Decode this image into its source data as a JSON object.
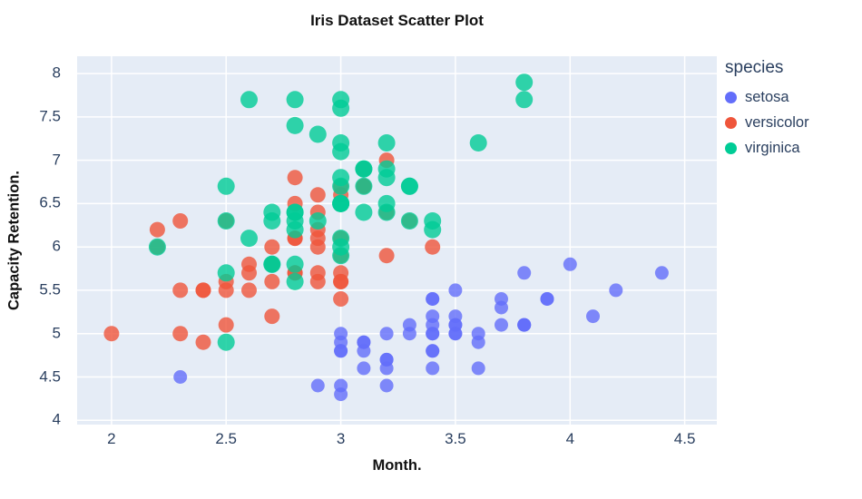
{
  "chart_data": {
    "type": "scatter",
    "title": "Iris Dataset Scatter Plot",
    "xlabel": "Month.",
    "ylabel": "Capacity Retention.",
    "xlim": [
      1.85,
      4.64
    ],
    "ylim": [
      3.95,
      8.2
    ],
    "x_ticks": [
      2,
      2.5,
      3,
      3.5,
      4,
      4.5
    ],
    "y_ticks": [
      4,
      4.5,
      5,
      5.5,
      6,
      6.5,
      7,
      7.5,
      8
    ],
    "grid": true,
    "plot_bg": "#E5ECF6",
    "grid_color": "#FFFFFF",
    "legend_position": "right",
    "legend_title": "species",
    "marker_opacity": 0.8,
    "series": [
      {
        "name": "setosa",
        "color": "#636EFA",
        "marker_radius": 7.5,
        "points": [
          [
            3.5,
            5.1
          ],
          [
            3.0,
            4.9
          ],
          [
            3.2,
            4.7
          ],
          [
            3.1,
            4.6
          ],
          [
            3.6,
            5.0
          ],
          [
            3.9,
            5.4
          ],
          [
            3.4,
            4.6
          ],
          [
            3.4,
            5.0
          ],
          [
            2.9,
            4.4
          ],
          [
            3.1,
            4.9
          ],
          [
            3.7,
            5.4
          ],
          [
            3.4,
            4.8
          ],
          [
            3.0,
            4.8
          ],
          [
            3.0,
            4.3
          ],
          [
            4.0,
            5.8
          ],
          [
            4.4,
            5.7
          ],
          [
            3.9,
            5.4
          ],
          [
            3.5,
            5.1
          ],
          [
            3.8,
            5.7
          ],
          [
            3.8,
            5.1
          ],
          [
            3.4,
            5.4
          ],
          [
            3.7,
            5.1
          ],
          [
            3.6,
            4.6
          ],
          [
            3.3,
            5.1
          ],
          [
            3.4,
            4.8
          ],
          [
            3.0,
            5.0
          ],
          [
            3.4,
            5.0
          ],
          [
            3.5,
            5.2
          ],
          [
            3.4,
            5.2
          ],
          [
            3.2,
            4.7
          ],
          [
            3.1,
            4.8
          ],
          [
            3.4,
            5.4
          ],
          [
            4.1,
            5.2
          ],
          [
            4.2,
            5.5
          ],
          [
            3.1,
            4.9
          ],
          [
            3.2,
            5.0
          ],
          [
            3.5,
            5.5
          ],
          [
            3.6,
            4.9
          ],
          [
            3.0,
            4.4
          ],
          [
            3.4,
            5.1
          ],
          [
            3.5,
            5.0
          ],
          [
            2.3,
            4.5
          ],
          [
            3.2,
            4.4
          ],
          [
            3.5,
            5.0
          ],
          [
            3.8,
            5.1
          ],
          [
            3.0,
            4.8
          ],
          [
            3.8,
            5.1
          ],
          [
            3.2,
            4.6
          ],
          [
            3.7,
            5.3
          ],
          [
            3.3,
            5.0
          ]
        ]
      },
      {
        "name": "versicolor",
        "color": "#EF553B",
        "marker_radius": 8.5,
        "points": [
          [
            3.2,
            7.0
          ],
          [
            3.2,
            6.4
          ],
          [
            3.1,
            6.9
          ],
          [
            2.3,
            5.5
          ],
          [
            2.8,
            6.5
          ],
          [
            2.8,
            5.7
          ],
          [
            3.3,
            6.3
          ],
          [
            2.4,
            4.9
          ],
          [
            2.9,
            6.6
          ],
          [
            2.7,
            5.2
          ],
          [
            2.0,
            5.0
          ],
          [
            3.0,
            5.9
          ],
          [
            2.2,
            6.0
          ],
          [
            2.9,
            6.1
          ],
          [
            2.9,
            5.6
          ],
          [
            3.1,
            6.7
          ],
          [
            3.0,
            5.6
          ],
          [
            2.7,
            5.8
          ],
          [
            2.2,
            6.2
          ],
          [
            2.5,
            5.6
          ],
          [
            3.2,
            5.9
          ],
          [
            2.8,
            6.1
          ],
          [
            2.5,
            6.3
          ],
          [
            2.8,
            6.1
          ],
          [
            2.9,
            6.4
          ],
          [
            3.0,
            6.6
          ],
          [
            2.8,
            6.8
          ],
          [
            3.0,
            6.7
          ],
          [
            2.9,
            6.0
          ],
          [
            2.6,
            5.7
          ],
          [
            2.4,
            5.5
          ],
          [
            2.4,
            5.5
          ],
          [
            2.7,
            5.8
          ],
          [
            2.7,
            6.0
          ],
          [
            3.0,
            5.4
          ],
          [
            3.4,
            6.0
          ],
          [
            3.1,
            6.7
          ],
          [
            2.3,
            6.3
          ],
          [
            3.0,
            5.6
          ],
          [
            2.5,
            5.5
          ],
          [
            2.6,
            5.5
          ],
          [
            3.0,
            6.1
          ],
          [
            2.6,
            5.8
          ],
          [
            2.3,
            5.0
          ],
          [
            2.7,
            5.6
          ],
          [
            3.0,
            5.7
          ],
          [
            2.9,
            5.7
          ],
          [
            2.9,
            6.2
          ],
          [
            2.5,
            5.1
          ],
          [
            2.8,
            5.7
          ]
        ]
      },
      {
        "name": "virginica",
        "color": "#00CC96",
        "marker_radius": 9.5,
        "points": [
          [
            3.3,
            6.3
          ],
          [
            2.7,
            5.8
          ],
          [
            3.0,
            7.1
          ],
          [
            2.9,
            6.3
          ],
          [
            3.0,
            6.5
          ],
          [
            3.0,
            7.6
          ],
          [
            2.5,
            4.9
          ],
          [
            2.9,
            7.3
          ],
          [
            2.5,
            6.7
          ],
          [
            3.6,
            7.2
          ],
          [
            3.2,
            6.5
          ],
          [
            2.7,
            6.4
          ],
          [
            3.0,
            6.8
          ],
          [
            2.5,
            5.7
          ],
          [
            2.8,
            5.8
          ],
          [
            3.2,
            6.4
          ],
          [
            3.0,
            6.5
          ],
          [
            3.8,
            7.7
          ],
          [
            2.6,
            7.7
          ],
          [
            2.2,
            6.0
          ],
          [
            3.2,
            6.9
          ],
          [
            2.8,
            5.6
          ],
          [
            2.8,
            7.7
          ],
          [
            2.7,
            6.3
          ],
          [
            3.3,
            6.7
          ],
          [
            3.2,
            7.2
          ],
          [
            2.8,
            6.2
          ],
          [
            3.0,
            6.1
          ],
          [
            2.8,
            6.4
          ],
          [
            3.0,
            7.2
          ],
          [
            2.8,
            7.4
          ],
          [
            3.8,
            7.9
          ],
          [
            2.8,
            6.4
          ],
          [
            2.8,
            6.3
          ],
          [
            2.6,
            6.1
          ],
          [
            3.0,
            7.7
          ],
          [
            3.4,
            6.3
          ],
          [
            3.1,
            6.4
          ],
          [
            3.0,
            6.0
          ],
          [
            3.1,
            6.9
          ],
          [
            3.1,
            6.7
          ],
          [
            3.1,
            6.9
          ],
          [
            2.7,
            5.8
          ],
          [
            3.2,
            6.8
          ],
          [
            3.3,
            6.7
          ],
          [
            3.0,
            6.7
          ],
          [
            2.5,
            6.3
          ],
          [
            3.0,
            6.5
          ],
          [
            3.4,
            6.2
          ],
          [
            3.0,
            5.9
          ]
        ]
      }
    ]
  },
  "legend": {
    "title": "species",
    "items": [
      {
        "label": "setosa",
        "color": "#636EFA"
      },
      {
        "label": "versicolor",
        "color": "#EF553B"
      },
      {
        "label": "virginica",
        "color": "#00CC96"
      }
    ]
  }
}
